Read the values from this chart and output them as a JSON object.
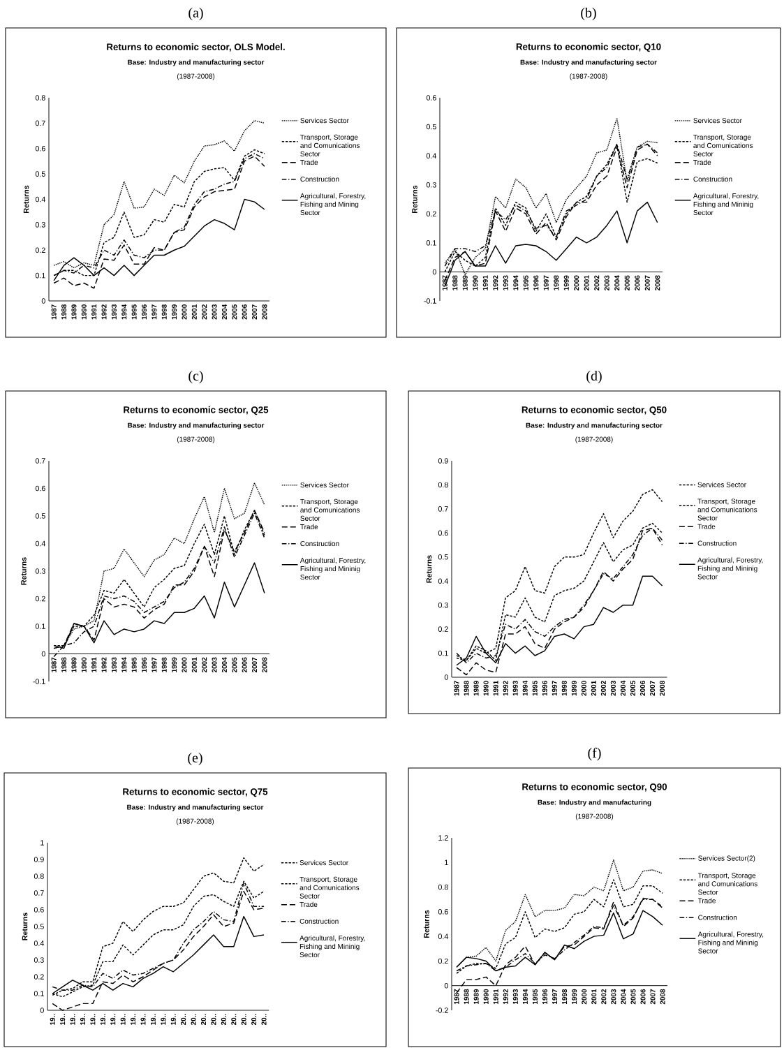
{
  "chart_data": [
    {
      "type": "line",
      "title": "Returns to economic sector, OLS Model.",
      "subtitle": "Base: Industry and manufacturing sector",
      "annotations": [
        "(a)",
        "(1987-2008)"
      ],
      "ylabel": "Returns",
      "legend": "right",
      "categories": [
        "1987",
        "1988",
        "1989",
        "1990",
        "1991",
        "1992",
        "1993",
        "1994",
        "1995",
        "1996",
        "1997",
        "1998",
        "1999",
        "2000",
        "2001",
        "2002",
        "2003",
        "2004",
        "2005",
        "2006",
        "2007",
        "2008"
      ],
      "ylim": [
        0,
        0.8
      ],
      "yticks": [
        0,
        0.1,
        0.2,
        0.3,
        0.4,
        0.5,
        0.6,
        0.7,
        0.8
      ],
      "series": [
        {
          "name": "Services Sector",
          "color": "#000000",
          "line_style": "dotted",
          "values": [
            0.14,
            0.155,
            0.13,
            0.15,
            0.14,
            0.3,
            0.34,
            0.47,
            0.365,
            0.37,
            0.44,
            0.415,
            0.495,
            0.465,
            0.55,
            0.61,
            0.615,
            0.63,
            0.59,
            0.67,
            0.71,
            0.7
          ]
        },
        {
          "name": "Transport, Storage and Comunications Sector",
          "color": "#000000",
          "line_style": "dashed",
          "values": [
            0.1,
            0.12,
            0.12,
            0.1,
            0.1,
            0.23,
            0.25,
            0.35,
            0.25,
            0.26,
            0.32,
            0.31,
            0.38,
            0.37,
            0.47,
            0.51,
            0.52,
            0.525,
            0.475,
            0.57,
            0.595,
            0.58
          ]
        },
        {
          "name": "Trade",
          "color": "#000000",
          "line_style": "dashed",
          "values": [
            0.07,
            0.09,
            0.06,
            0.07,
            0.05,
            0.165,
            0.16,
            0.22,
            0.145,
            0.145,
            0.21,
            0.2,
            0.27,
            0.28,
            0.37,
            0.41,
            0.43,
            0.435,
            0.44,
            0.55,
            0.57,
            0.53
          ]
        },
        {
          "name": "Construction",
          "color": "#000000",
          "line_style": "dashed",
          "values": [
            0.1,
            0.12,
            0.11,
            0.14,
            0.13,
            0.2,
            0.18,
            0.24,
            0.18,
            0.17,
            0.2,
            0.2,
            0.27,
            0.29,
            0.38,
            0.43,
            0.44,
            0.46,
            0.47,
            0.56,
            0.58,
            0.56
          ]
        },
        {
          "name": "Agricultural, Forestry, Fishing and Mining Sector",
          "color": "#000000",
          "line_style": "solid",
          "values": [
            0.08,
            0.14,
            0.17,
            0.14,
            0.1,
            0.13,
            0.1,
            0.14,
            0.1,
            0.14,
            0.18,
            0.18,
            0.2,
            0.215,
            0.255,
            0.295,
            0.32,
            0.305,
            0.28,
            0.4,
            0.39,
            0.36
          ]
        }
      ]
    },
    {
      "type": "line",
      "title": "Returns to economic sector, Q10",
      "subtitle": "Base: Industry and manufacturing sector",
      "annotations": [
        "(b)",
        "(1987-2008)"
      ],
      "ylabel": "Returns",
      "legend": "right",
      "categories": [
        "1987",
        "1988",
        "1989",
        "1990",
        "1991",
        "1992",
        "1993",
        "1994",
        "1995",
        "1996",
        "1997",
        "1998",
        "1999",
        "2000",
        "2001",
        "2002",
        "2003",
        "2004",
        "2005",
        "2006",
        "2007",
        "2008"
      ],
      "ylim": [
        -0.1,
        0.6
      ],
      "yticks": [
        -0.1,
        0,
        0.1,
        0.2,
        0.3,
        0.4,
        0.5,
        0.6
      ],
      "series": [
        {
          "name": "Services Sector",
          "color": "#000000",
          "line_style": "dotted",
          "values": [
            0.03,
            0.08,
            -0.01,
            0.05,
            0.08,
            0.26,
            0.22,
            0.32,
            0.29,
            0.22,
            0.27,
            0.17,
            0.25,
            0.29,
            0.33,
            0.41,
            0.42,
            0.53,
            0.31,
            0.43,
            0.45,
            0.445
          ]
        },
        {
          "name": "Transport, Storage and Comunications Sector",
          "color": "#000000",
          "line_style": "dashed",
          "values": [
            0.0,
            0.07,
            0.04,
            0.02,
            0.05,
            0.22,
            0.16,
            0.24,
            0.22,
            0.14,
            0.2,
            0.12,
            0.2,
            0.24,
            0.26,
            0.33,
            0.37,
            0.44,
            0.24,
            0.38,
            0.39,
            0.375
          ]
        },
        {
          "name": "Trade",
          "color": "#000000",
          "line_style": "dashed",
          "values": [
            -0.03,
            0.05,
            0.07,
            0.02,
            0.03,
            0.21,
            0.14,
            0.22,
            0.2,
            0.13,
            0.17,
            0.11,
            0.19,
            0.24,
            0.24,
            0.3,
            0.33,
            0.43,
            0.29,
            0.42,
            0.44,
            0.4
          ]
        },
        {
          "name": "Construction",
          "color": "#000000",
          "line_style": "dashed",
          "values": [
            0.02,
            0.08,
            0.08,
            0.07,
            0.09,
            0.21,
            0.18,
            0.23,
            0.21,
            0.15,
            0.16,
            0.12,
            0.21,
            0.23,
            0.25,
            0.33,
            0.36,
            0.44,
            0.32,
            0.43,
            0.44,
            0.41
          ]
        },
        {
          "name": "Agricultural, Forestry, Fishing and Mininig Sector",
          "color": "#000000",
          "line_style": "solid",
          "values": [
            -0.05,
            0.04,
            0.07,
            0.02,
            0.02,
            0.09,
            0.03,
            0.09,
            0.095,
            0.09,
            0.07,
            0.04,
            0.08,
            0.12,
            0.1,
            0.12,
            0.16,
            0.21,
            0.1,
            0.21,
            0.24,
            0.17
          ]
        }
      ]
    },
    {
      "type": "line",
      "title": "Returns to economic sector, Q25",
      "subtitle": "Base: Industry and manufacturing sector",
      "annotations": [
        "(c)",
        "(1987-2008)"
      ],
      "ylabel": "Returns",
      "legend": "right",
      "categories": [
        "1987",
        "1988",
        "1989",
        "1990",
        "1991",
        "1992",
        "1993",
        "1994",
        "1995",
        "1996",
        "1997",
        "1998",
        "1999",
        "2000",
        "2001",
        "2002",
        "2003",
        "2004",
        "2005",
        "2006",
        "2007",
        "2008"
      ],
      "ylim": [
        -0.1,
        0.7
      ],
      "yticks": [
        -0.1,
        0,
        0.1,
        0.2,
        0.3,
        0.4,
        0.5,
        0.6,
        0.7
      ],
      "series": [
        {
          "name": "Services Sector",
          "color": "#000000",
          "line_style": "dotted",
          "values": [
            0.02,
            0.03,
            0.09,
            0.1,
            0.12,
            0.3,
            0.31,
            0.38,
            0.33,
            0.28,
            0.34,
            0.36,
            0.42,
            0.4,
            0.49,
            0.57,
            0.44,
            0.6,
            0.49,
            0.51,
            0.62,
            0.54
          ]
        },
        {
          "name": "Transport, Storage and Comunications Sector",
          "color": "#000000",
          "line_style": "dashed",
          "values": [
            0.03,
            0.03,
            0.1,
            0.1,
            0.14,
            0.23,
            0.22,
            0.27,
            0.22,
            0.17,
            0.24,
            0.27,
            0.31,
            0.32,
            0.4,
            0.47,
            0.36,
            0.5,
            0.36,
            0.45,
            0.52,
            0.43
          ]
        },
        {
          "name": "Trade",
          "color": "#000000",
          "line_style": "dashed",
          "values": [
            0.02,
            0.03,
            0.11,
            0.1,
            0.05,
            0.2,
            0.17,
            0.18,
            0.17,
            0.13,
            0.16,
            0.18,
            0.25,
            0.25,
            0.3,
            0.39,
            0.28,
            0.45,
            0.37,
            0.44,
            0.52,
            0.44
          ]
        },
        {
          "name": "Construction",
          "color": "#000000",
          "line_style": "dashed",
          "values": [
            -0.01,
            0.03,
            0.04,
            0.08,
            0.1,
            0.21,
            0.2,
            0.21,
            0.19,
            0.15,
            0.17,
            0.19,
            0.24,
            0.26,
            0.31,
            0.39,
            0.33,
            0.46,
            0.35,
            0.43,
            0.51,
            0.42
          ]
        },
        {
          "name": "Agricultural, Forestry, Fishing and Mininig Sector",
          "color": "#000000",
          "line_style": "solid",
          "values": [
            0.03,
            0.02,
            0.11,
            0.1,
            0.04,
            0.12,
            0.07,
            0.09,
            0.08,
            0.09,
            0.12,
            0.11,
            0.15,
            0.15,
            0.165,
            0.21,
            0.13,
            0.26,
            0.17,
            0.25,
            0.33,
            0.22
          ]
        }
      ]
    },
    {
      "type": "line",
      "title": "Returns to economic sector, Q50",
      "subtitle": "Base: Industry and manufacturing sector",
      "annotations": [
        "(d)",
        "(1987-2008)"
      ],
      "ylabel": "Returns",
      "legend": "right",
      "categories": [
        "1987",
        "1988",
        "1989",
        "1990",
        "1991",
        "1992",
        "1993",
        "1994",
        "1995",
        "1996",
        "1997",
        "1998",
        "1999",
        "2000",
        "2001",
        "2002",
        "2003",
        "2004",
        "2005",
        "2006",
        "2007",
        "2008"
      ],
      "ylim": [
        0,
        0.9
      ],
      "yticks": [
        0,
        0.1,
        0.2,
        0.3,
        0.4,
        0.5,
        0.6,
        0.7,
        0.8,
        0.9
      ],
      "series": [
        {
          "name": "Services Sector",
          "color": "#000000",
          "line_style": "dashed",
          "values": [
            0.08,
            0.07,
            0.12,
            0.1,
            0.12,
            0.33,
            0.36,
            0.46,
            0.36,
            0.35,
            0.46,
            0.5,
            0.5,
            0.51,
            0.6,
            0.68,
            0.58,
            0.65,
            0.69,
            0.76,
            0.78,
            0.73
          ]
        },
        {
          "name": "Transport, Storage and Comunications Sector",
          "color": "#000000",
          "line_style": "dashed",
          "values": [
            0.09,
            0.07,
            0.13,
            0.11,
            0.07,
            0.26,
            0.25,
            0.33,
            0.25,
            0.23,
            0.34,
            0.36,
            0.37,
            0.4,
            0.48,
            0.56,
            0.48,
            0.53,
            0.55,
            0.62,
            0.64,
            0.6
          ]
        },
        {
          "name": "Trade",
          "color": "#000000",
          "line_style": "dashed",
          "values": [
            0.04,
            0.01,
            0.06,
            0.03,
            0.02,
            0.18,
            0.18,
            0.21,
            0.14,
            0.12,
            0.2,
            0.23,
            0.25,
            0.29,
            0.36,
            0.44,
            0.4,
            0.45,
            0.49,
            0.61,
            0.62,
            0.55
          ]
        },
        {
          "name": "Construction",
          "color": "#000000",
          "line_style": "dashed",
          "values": [
            0.1,
            0.06,
            0.1,
            0.08,
            0.09,
            0.22,
            0.2,
            0.24,
            0.19,
            0.17,
            0.21,
            0.24,
            0.25,
            0.3,
            0.36,
            0.43,
            0.41,
            0.46,
            0.51,
            0.59,
            0.62,
            0.57
          ]
        },
        {
          "name": "Agricultural, Forestry, Fishing and Mininig Sector",
          "color": "#000000",
          "line_style": "solid",
          "values": [
            0.05,
            0.08,
            0.17,
            0.1,
            0.06,
            0.14,
            0.1,
            0.13,
            0.09,
            0.11,
            0.17,
            0.18,
            0.16,
            0.21,
            0.22,
            0.29,
            0.27,
            0.3,
            0.3,
            0.42,
            0.42,
            0.38
          ]
        }
      ]
    },
    {
      "type": "line",
      "title": "Returns to economic sector, Q75",
      "subtitle": "Base: Industry and manufacturing sector",
      "annotations": [
        "(e)",
        "(1987-2008)"
      ],
      "ylabel": "Returns",
      "legend": "right",
      "categories": [
        "19..",
        "19..",
        "19..",
        "19..",
        "19..",
        "19..",
        "19..",
        "19..",
        "19..",
        "19..",
        "19..",
        "19..",
        "19..",
        "20..",
        "20..",
        "20..",
        "20..",
        "20..",
        "20..",
        "20..",
        "20..",
        "20.."
      ],
      "ylim": [
        0,
        1
      ],
      "yticks": [
        0,
        0.1,
        0.2,
        0.3,
        0.4,
        0.5,
        0.6,
        0.7,
        0.8,
        0.9,
        1
      ],
      "series": [
        {
          "name": "Services Sector",
          "color": "#000000",
          "line_style": "dashed",
          "values": [
            0.09,
            0.12,
            0.13,
            0.17,
            0.17,
            0.38,
            0.4,
            0.53,
            0.47,
            0.54,
            0.59,
            0.62,
            0.62,
            0.64,
            0.72,
            0.8,
            0.82,
            0.77,
            0.76,
            0.91,
            0.83,
            0.87
          ]
        },
        {
          "name": "Transport, Storage and Comunications Sector",
          "color": "#000000",
          "line_style": "dashed",
          "values": [
            0.1,
            0.08,
            0.11,
            0.14,
            0.15,
            0.29,
            0.29,
            0.39,
            0.33,
            0.39,
            0.45,
            0.48,
            0.48,
            0.51,
            0.62,
            0.68,
            0.69,
            0.65,
            0.62,
            0.77,
            0.67,
            0.71
          ]
        },
        {
          "name": "Trade",
          "color": "#000000",
          "line_style": "dashed",
          "values": [
            0.04,
            0.0,
            0.02,
            0.04,
            0.04,
            0.17,
            0.16,
            0.21,
            0.17,
            0.2,
            0.24,
            0.28,
            0.3,
            0.36,
            0.44,
            0.5,
            0.57,
            0.5,
            0.52,
            0.71,
            0.6,
            0.61
          ]
        },
        {
          "name": "Construction",
          "color": "#000000",
          "line_style": "dashed",
          "values": [
            0.14,
            0.12,
            0.12,
            0.15,
            0.14,
            0.22,
            0.19,
            0.24,
            0.21,
            0.22,
            0.25,
            0.28,
            0.3,
            0.4,
            0.48,
            0.53,
            0.59,
            0.54,
            0.53,
            0.76,
            0.62,
            0.62
          ]
        },
        {
          "name": "Agricultural, Forestry, Fishing and Mininig Sector",
          "color": "#000000",
          "line_style": "solid",
          "values": [
            0.1,
            0.14,
            0.18,
            0.15,
            0.12,
            0.16,
            0.12,
            0.16,
            0.14,
            0.19,
            0.22,
            0.26,
            0.23,
            0.28,
            0.33,
            0.39,
            0.45,
            0.38,
            0.38,
            0.56,
            0.44,
            0.45
          ]
        }
      ]
    },
    {
      "type": "line",
      "title": "Returns to economic sector, Q90",
      "subtitle": "Base: Industry and manufacturing",
      "annotations": [
        "(f)",
        "(1987-2008)"
      ],
      "ylabel": "Returns",
      "legend": "right",
      "categories": [
        "1987",
        "1988",
        "1989",
        "1990",
        "1991",
        "1992",
        "1993",
        "1994",
        "1995",
        "1996",
        "1997",
        "1998",
        "1999",
        "2000",
        "2001",
        "2002",
        "2003",
        "2004",
        "2005",
        "2006",
        "2007",
        "2008"
      ],
      "ylim": [
        -0.2,
        1.2
      ],
      "yticks": [
        -0.2,
        0,
        0.2,
        0.4,
        0.6,
        0.8,
        1,
        1.2
      ],
      "series": [
        {
          "name": "Services Sector(2)",
          "color": "#000000",
          "line_style": "dotted",
          "values": [
            0.15,
            0.23,
            0.24,
            0.31,
            0.2,
            0.45,
            0.52,
            0.74,
            0.56,
            0.61,
            0.61,
            0.63,
            0.74,
            0.73,
            0.8,
            0.77,
            1.02,
            0.77,
            0.8,
            0.93,
            0.94,
            0.91
          ]
        },
        {
          "name": "Transport, Storage and Comunications Sector",
          "color": "#000000",
          "line_style": "dashed",
          "values": [
            0.1,
            0.16,
            0.18,
            0.18,
            0.14,
            0.34,
            0.39,
            0.6,
            0.39,
            0.46,
            0.44,
            0.47,
            0.58,
            0.6,
            0.7,
            0.64,
            0.86,
            0.64,
            0.66,
            0.81,
            0.81,
            0.75
          ]
        },
        {
          "name": "Trade",
          "color": "#000000",
          "line_style": "dashed",
          "values": [
            -0.06,
            0.05,
            0.05,
            0.07,
            0.0,
            0.17,
            0.23,
            0.32,
            0.17,
            0.27,
            0.21,
            0.32,
            0.33,
            0.4,
            0.47,
            0.46,
            0.68,
            0.48,
            0.55,
            0.71,
            0.7,
            0.63
          ]
        },
        {
          "name": "Construction",
          "color": "#000000",
          "line_style": "dashed",
          "values": [
            0.12,
            0.16,
            0.17,
            0.18,
            0.12,
            0.15,
            0.21,
            0.26,
            0.18,
            0.25,
            0.22,
            0.29,
            0.35,
            0.41,
            0.48,
            0.47,
            0.65,
            0.49,
            0.56,
            0.7,
            0.7,
            0.64
          ]
        },
        {
          "name": "Agricultural, Forestry, Fishing and Mininig Sector",
          "color": "#000000",
          "line_style": "solid",
          "values": [
            0.15,
            0.23,
            0.22,
            0.2,
            0.12,
            0.15,
            0.16,
            0.23,
            0.17,
            0.27,
            0.21,
            0.33,
            0.3,
            0.36,
            0.4,
            0.41,
            0.59,
            0.38,
            0.42,
            0.61,
            0.56,
            0.49
          ]
        }
      ]
    }
  ]
}
